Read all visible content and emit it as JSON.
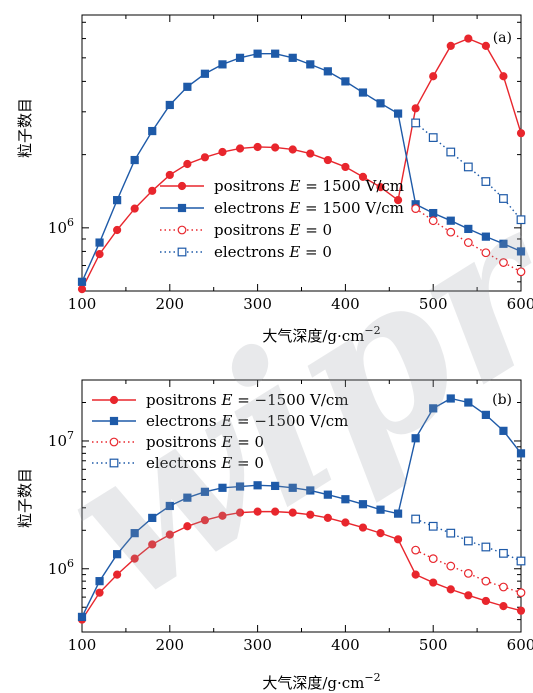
{
  "chart_data": [
    {
      "type": "line",
      "panel_label": "(a)",
      "xlabel": "大气深度/g·cm",
      "xlabel_sup": "−2",
      "ylabel": "粒子数目",
      "xlim": [
        100,
        600
      ],
      "ylim": [
        550000,
        7500000
      ],
      "yscale": "log",
      "legend": "bottom-right",
      "grid": false,
      "xticks": [
        100,
        200,
        300,
        400,
        500,
        600
      ],
      "yticks": [
        {
          "value": 1000000,
          "label": "10",
          "sup": "6"
        }
      ],
      "x": [
        100,
        120,
        140,
        160,
        180,
        200,
        220,
        240,
        260,
        280,
        300,
        320,
        340,
        360,
        380,
        400,
        420,
        440,
        460,
        480,
        500,
        520,
        540,
        560,
        580,
        600
      ],
      "series": [
        {
          "name": "positrons E = 1500 V/cm",
          "label_prefix": "positrons ",
          "label_eq": "= 1500 V/cm",
          "color": "#e8262d",
          "marker": "filled-circle",
          "linestyle": "solid",
          "values": [
            560000,
            780000,
            980000,
            1200000,
            1420000,
            1650000,
            1830000,
            1950000,
            2050000,
            2120000,
            2150000,
            2140000,
            2100000,
            2020000,
            1900000,
            1780000,
            1620000,
            1470000,
            1300000,
            3100000,
            4200000,
            5600000,
            6000000,
            5600000,
            4200000,
            2450000
          ]
        },
        {
          "name": "electrons E = 1500 V/cm",
          "label_prefix": "electrons ",
          "label_eq": "= 1500 V/cm",
          "color": "#1e5aa8",
          "marker": "filled-square",
          "linestyle": "solid",
          "values": [
            600000,
            870000,
            1300000,
            1900000,
            2500000,
            3200000,
            3800000,
            4300000,
            4700000,
            5000000,
            5200000,
            5200000,
            5000000,
            4700000,
            4400000,
            4000000,
            3600000,
            3250000,
            2950000,
            1250000,
            1150000,
            1070000,
            990000,
            920000,
            860000,
            800000
          ]
        },
        {
          "name": "positrons E = 0",
          "label_prefix": "positrons ",
          "label_eq": "= 0",
          "color": "#e8262d",
          "marker": "open-circle",
          "linestyle": "dotted",
          "values": [
            null,
            null,
            null,
            null,
            null,
            null,
            null,
            null,
            null,
            null,
            null,
            null,
            null,
            null,
            null,
            null,
            null,
            null,
            null,
            1200000,
            1070000,
            960000,
            870000,
            790000,
            720000,
            660000
          ]
        },
        {
          "name": "electrons E = 0",
          "label_prefix": "electrons ",
          "label_eq": "= 0",
          "color": "#1e5aa8",
          "marker": "open-square",
          "linestyle": "dotted",
          "values": [
            null,
            null,
            null,
            null,
            null,
            null,
            null,
            null,
            null,
            null,
            null,
            null,
            null,
            null,
            null,
            null,
            null,
            null,
            null,
            2700000,
            2350000,
            2050000,
            1780000,
            1550000,
            1320000,
            1080000
          ]
        }
      ]
    },
    {
      "type": "line",
      "panel_label": "(b)",
      "xlabel": "大气深度/g·cm",
      "xlabel_sup": "−2",
      "ylabel": "粒子数目",
      "xlim": [
        100,
        600
      ],
      "ylim": [
        320000,
        30000000
      ],
      "yscale": "log",
      "legend": "top-left",
      "grid": false,
      "xticks": [
        100,
        200,
        300,
        400,
        500,
        600
      ],
      "yticks": [
        {
          "value": 1000000,
          "label": "10",
          "sup": "6"
        },
        {
          "value": 10000000,
          "label": "10",
          "sup": "7"
        }
      ],
      "x": [
        100,
        120,
        140,
        160,
        180,
        200,
        220,
        240,
        260,
        280,
        300,
        320,
        340,
        360,
        380,
        400,
        420,
        440,
        460,
        480,
        500,
        520,
        540,
        560,
        580,
        600
      ],
      "series": [
        {
          "name": "positrons E = −1500 V/cm",
          "label_prefix": "positrons ",
          "label_eq": "= −1500 V/cm",
          "color": "#e8262d",
          "marker": "filled-circle",
          "linestyle": "solid",
          "values": [
            400000,
            650000,
            900000,
            1200000,
            1550000,
            1850000,
            2150000,
            2400000,
            2600000,
            2750000,
            2800000,
            2800000,
            2750000,
            2650000,
            2500000,
            2300000,
            2100000,
            1900000,
            1700000,
            900000,
            780000,
            690000,
            620000,
            560000,
            510000,
            470000
          ]
        },
        {
          "name": "electrons E = −1500 V/cm",
          "label_prefix": "electrons ",
          "label_eq": "= −1500 V/cm",
          "color": "#1e5aa8",
          "marker": "filled-square",
          "linestyle": "solid",
          "values": [
            420000,
            800000,
            1300000,
            1900000,
            2500000,
            3100000,
            3600000,
            4000000,
            4300000,
            4400000,
            4500000,
            4450000,
            4300000,
            4100000,
            3800000,
            3500000,
            3200000,
            2900000,
            2700000,
            10500000,
            18000000,
            21500000,
            20000000,
            16000000,
            12000000,
            8000000
          ]
        },
        {
          "name": "positrons E = 0",
          "label_prefix": "positrons ",
          "label_eq": "= 0",
          "color": "#e8262d",
          "marker": "open-circle",
          "linestyle": "dotted",
          "values": [
            null,
            null,
            null,
            null,
            null,
            null,
            null,
            null,
            null,
            null,
            null,
            null,
            null,
            null,
            null,
            null,
            null,
            null,
            null,
            1400000,
            1200000,
            1050000,
            920000,
            800000,
            720000,
            650000
          ]
        },
        {
          "name": "electrons E = 0",
          "label_prefix": "electrons ",
          "label_eq": "= 0",
          "color": "#1e5aa8",
          "marker": "open-square",
          "linestyle": "dotted",
          "values": [
            null,
            null,
            null,
            null,
            null,
            null,
            null,
            null,
            null,
            null,
            null,
            null,
            null,
            null,
            null,
            null,
            null,
            null,
            null,
            2450000,
            2150000,
            1900000,
            1650000,
            1480000,
            1320000,
            1150000
          ]
        }
      ]
    }
  ]
}
